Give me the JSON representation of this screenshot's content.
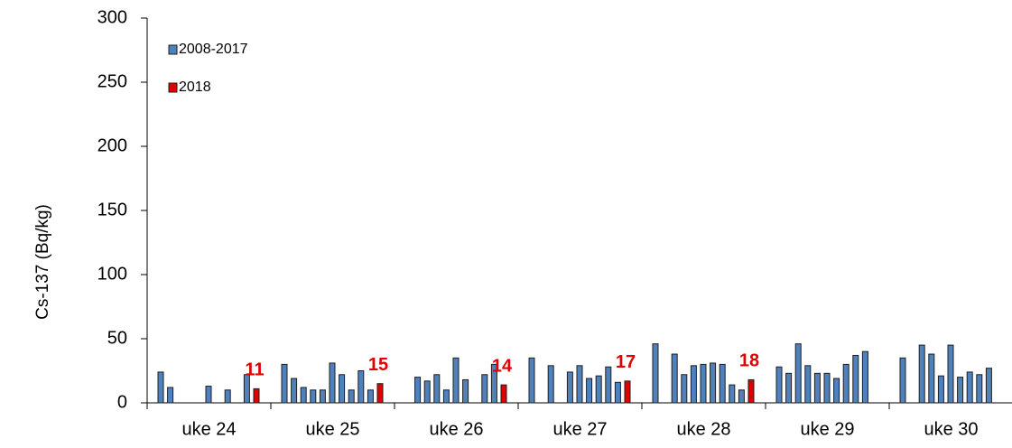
{
  "chart_data": {
    "type": "bar",
    "ylabel": "Cs-137 (Bq/kg)",
    "categories": [
      "uke 24",
      "uke 25",
      "uke 26",
      "uke 27",
      "uke 28",
      "uke 29",
      "uke 30"
    ],
    "series": [
      {
        "name": "2008-2017",
        "color": "#4f81bd",
        "values": [
          [
            24,
            12,
            null,
            null,
            null,
            13,
            null,
            10,
            null,
            22
          ],
          [
            30,
            19,
            12,
            10,
            10,
            31,
            22,
            10,
            25,
            10
          ],
          [
            null,
            20,
            17,
            22,
            10,
            35,
            18,
            null,
            22,
            30
          ],
          [
            35,
            null,
            29,
            null,
            24,
            29,
            19,
            21,
            28,
            16
          ],
          [
            46,
            null,
            38,
            22,
            29,
            30,
            31,
            30,
            14,
            10
          ],
          [
            28,
            23,
            46,
            29,
            23,
            23,
            19,
            30,
            37,
            40
          ],
          [
            35,
            null,
            45,
            38,
            21,
            45,
            20,
            24,
            22,
            27
          ]
        ]
      },
      {
        "name": "2018",
        "color": "#e00000",
        "values": [
          11,
          15,
          14,
          17,
          18,
          null,
          null
        ]
      }
    ],
    "ylim": [
      0,
      300
    ],
    "yticks": [
      0,
      50,
      100,
      150,
      200,
      250,
      300
    ],
    "grid": false,
    "legend": "top-left"
  }
}
